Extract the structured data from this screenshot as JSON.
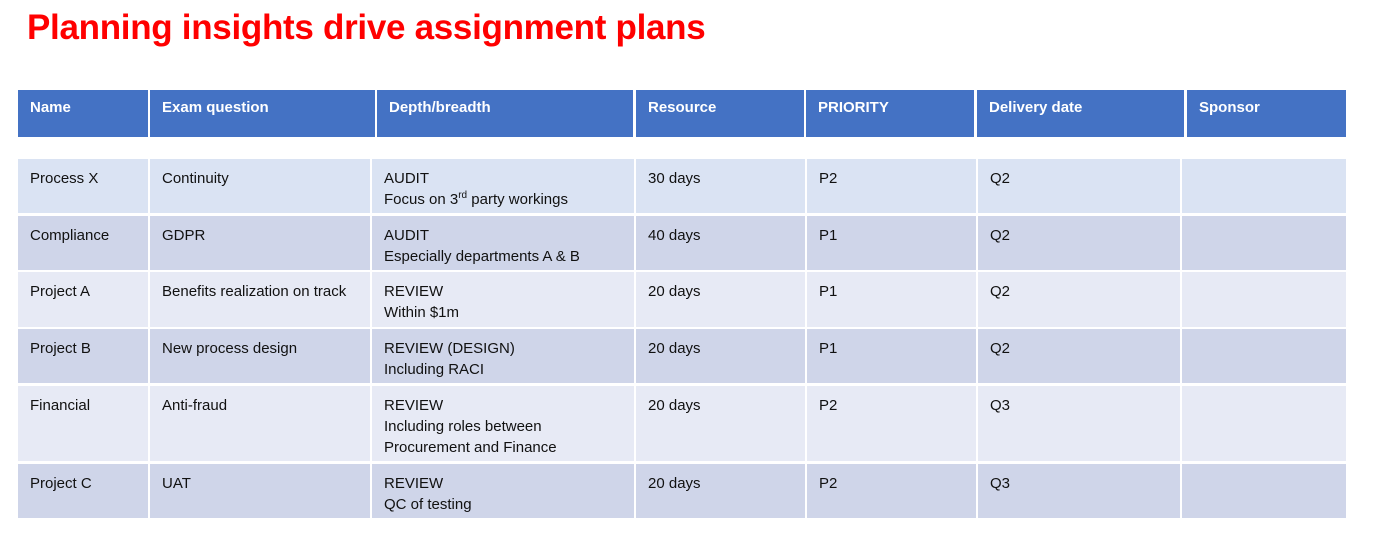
{
  "title": "Planning insights drive assignment plans",
  "colors": {
    "title": "#ff0000",
    "header_bg": "#4472c4",
    "row_light": "#e7eaf5",
    "row_dark": "#cfd5e9",
    "row_first": "#dae3f3"
  },
  "headers": [
    "Name",
    "Exam question",
    "Depth/breadth",
    "Resource",
    "PRIORITY",
    "Delivery date",
    "Sponsor"
  ],
  "rows": [
    {
      "name": "Process X",
      "question": "Continuity",
      "depth": [
        "AUDIT",
        "Focus on 3",
        "rd",
        " party workings"
      ],
      "resource": "30 days",
      "priority": "P2",
      "delivery": "Q2",
      "sponsor": ""
    },
    {
      "name": "Compliance",
      "question": "GDPR",
      "depth": [
        "AUDIT",
        "Especially departments A & B"
      ],
      "resource": "40 days",
      "priority": "P1",
      "delivery": "Q2",
      "sponsor": ""
    },
    {
      "name": "Project A",
      "question": "Benefits realization on track",
      "depth": [
        "REVIEW",
        "Within $1m"
      ],
      "resource": "20 days",
      "priority": "P1",
      "delivery": "Q2",
      "sponsor": ""
    },
    {
      "name": "Project B",
      "question": "New process design",
      "depth": [
        "REVIEW (DESIGN)",
        "Including RACI"
      ],
      "resource": "20 days",
      "priority": "P1",
      "delivery": "Q2",
      "sponsor": ""
    },
    {
      "name": "Financial",
      "question": "Anti-fraud",
      "depth": [
        "REVIEW",
        "Including roles between",
        "Procurement and Finance"
      ],
      "resource": "20 days",
      "priority": "P2",
      "delivery": "Q3",
      "sponsor": ""
    },
    {
      "name": "Project C",
      "question": "UAT",
      "depth": [
        "REVIEW",
        "QC of testing"
      ],
      "resource": "20 days",
      "priority": "P2",
      "delivery": "Q3",
      "sponsor": ""
    }
  ]
}
